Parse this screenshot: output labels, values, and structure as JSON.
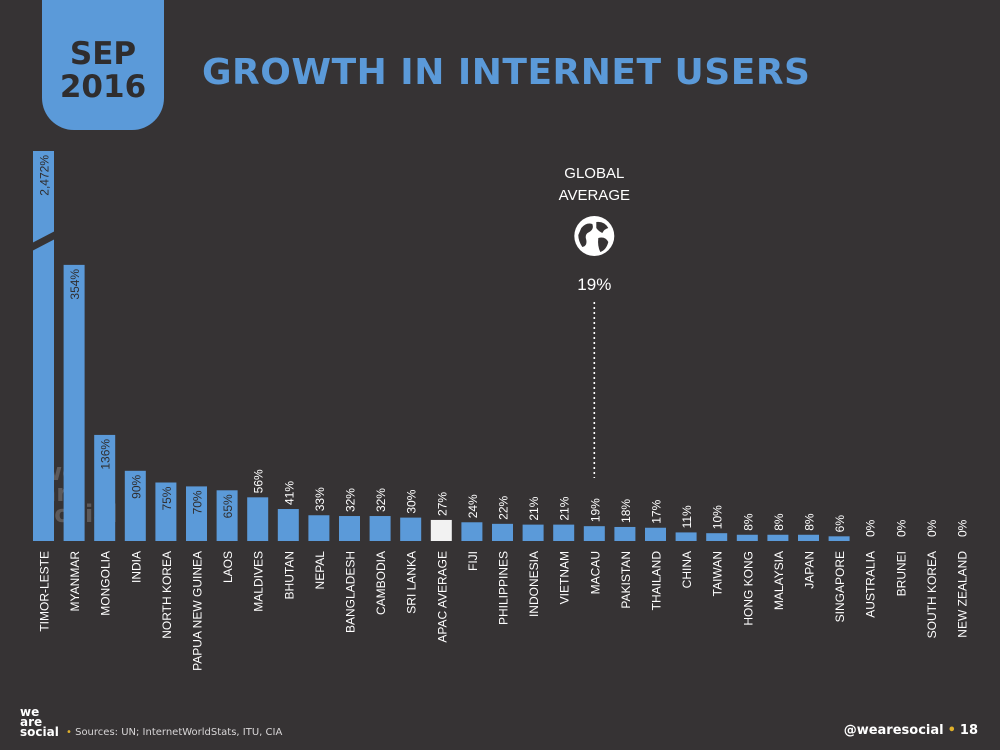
{
  "badge": {
    "month": "SEP",
    "year": "2016"
  },
  "title": "GROWTH IN INTERNET USERS",
  "global": {
    "label_line1": "GLOBAL",
    "label_line2": "AVERAGE",
    "icon": "globe-icon",
    "value_label": "19%"
  },
  "watermark": [
    "we",
    "are",
    "social"
  ],
  "footer": {
    "logo": [
      "we",
      "are",
      "social"
    ],
    "sources": "Sources: UN; InternetWorldStats, ITU, CIA",
    "handle": "@wearesocial",
    "page": "18"
  },
  "colors": {
    "background": "#363334",
    "bar": "#5b9ad9",
    "highlight": "#f2f2f2",
    "accent": "#e0b02a"
  },
  "chart_data": {
    "type": "bar",
    "title": "GROWTH IN INTERNET USERS",
    "axis_break_on": "TIMOR-LESTE",
    "categories": [
      "TIMOR-LESTE",
      "MYANMAR",
      "MONGOLIA",
      "INDIA",
      "NORTH KOREA",
      "PAPUA NEW GUINEA",
      "LAOS",
      "MALDIVES",
      "BHUTAN",
      "NEPAL",
      "BANGLADESH",
      "CAMBODIA",
      "SRI LANKA",
      "APAC AVERAGE",
      "FIJI",
      "PHILIPPINES",
      "INDONESIA",
      "VIETNAM",
      "MACAU",
      "PAKISTAN",
      "THAILAND",
      "CHINA",
      "TAIWAN",
      "HONG KONG",
      "MALAYSIA",
      "JAPAN",
      "SINGAPORE",
      "AUSTRALIA",
      "BRUNEI",
      "SOUTH KOREA",
      "NEW ZEALAND"
    ],
    "values": [
      2472,
      354,
      136,
      90,
      75,
      70,
      65,
      56,
      41,
      33,
      32,
      32,
      30,
      27,
      24,
      22,
      21,
      21,
      19,
      18,
      17,
      11,
      10,
      8,
      8,
      8,
      6,
      0,
      0,
      0,
      0
    ],
    "value_labels": [
      "2,472%",
      "354%",
      "136%",
      "90%",
      "75%",
      "70%",
      "65%",
      "56%",
      "41%",
      "33%",
      "32%",
      "32%",
      "30%",
      "27%",
      "24%",
      "22%",
      "21%",
      "21%",
      "19%",
      "18%",
      "17%",
      "11%",
      "10%",
      "8%",
      "8%",
      "8%",
      "6%",
      "0%",
      "0%",
      "0%",
      "0%"
    ],
    "highlight": "APAC AVERAGE",
    "reference_line": {
      "category": "MACAU",
      "value": 19
    }
  }
}
